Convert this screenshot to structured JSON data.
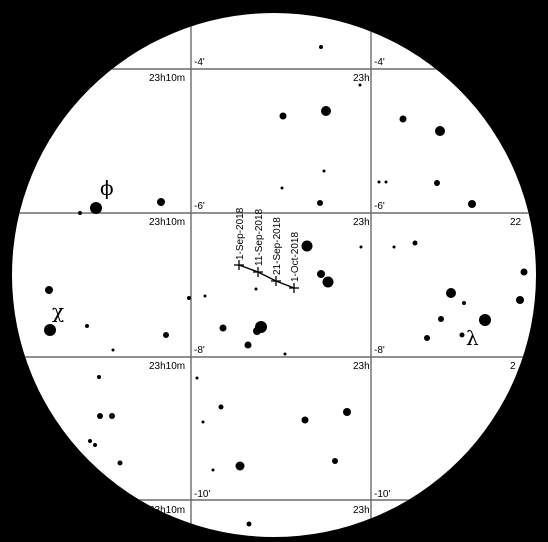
{
  "chart_title": "",
  "colors": {
    "sky": "#ffffff",
    "frame": "#000000",
    "grid": "#6b6b6b",
    "ink": "#000000"
  },
  "grid_labels": {
    "ra_upper_left": "23h10m",
    "ra_upper_right": "23h",
    "ra_mid_left": "23h10m",
    "ra_mid_right": "23h",
    "ra_mid_far_right": "22",
    "ra_lower_left": "23h10m",
    "ra_lower_right": "23h",
    "ra_lower_far_right": "2",
    "ra_bottom_left": "23h10m",
    "ra_bottom_right": "23h",
    "dec_m4_left": "-4'",
    "dec_m4_right": "-4'",
    "dec_m6_left": "-6'",
    "dec_m6_right": "-6'",
    "dec_m8_left": "-8'",
    "dec_m8_right": "-8'",
    "dec_m10_left": "-10'",
    "dec_m10_right": "-10'"
  },
  "star_labels": {
    "phi": "ϕ",
    "chi": "χ",
    "lambda": "λ"
  },
  "track_dates": [
    "1-Sep-2018",
    "11-Sep-2018",
    "21-Sep-2018",
    "1-Oct-2018"
  ]
}
